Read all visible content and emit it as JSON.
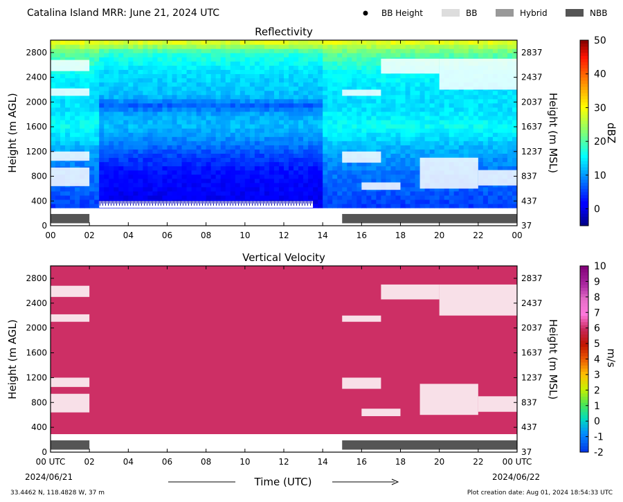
{
  "header": {
    "title": "Catalina Island MRR:  June 21, 2024 UTC",
    "legend": [
      {
        "label": "BB Height",
        "marker": "dot",
        "color": "#000000"
      },
      {
        "label": "BB",
        "marker": "swatch",
        "color": "#dddddd"
      },
      {
        "label": "Hybrid",
        "marker": "swatch",
        "color": "#999999"
      },
      {
        "label": "NBB",
        "marker": "swatch",
        "color": "#555555"
      }
    ]
  },
  "footer": {
    "location": "33.4462 N, 118.4828 W, 37 m",
    "creation": "Plot creation date: Aug 01, 2024 18:54:33 UTC",
    "xlabel": "Time (UTC)",
    "start_date": "2024/06/21",
    "end_date": "2024/06/22"
  },
  "chart_data": [
    {
      "type": "heatmap",
      "title": "Reflectivity",
      "ylabel_left": "Height (m AGL)",
      "ylabel_right": "Height (m MSL)",
      "x_ticks": [
        "00",
        "02",
        "04",
        "06",
        "08",
        "10",
        "12",
        "14",
        "16",
        "18",
        "20",
        "22",
        "00"
      ],
      "xlim": [
        0,
        24
      ],
      "ylim": [
        0,
        3000
      ],
      "y_ticks_left": [
        0,
        400,
        800,
        1200,
        1600,
        2000,
        2400,
        2800
      ],
      "y_ticks_right": [
        37,
        437,
        837,
        1237,
        1637,
        2037,
        2437,
        2837
      ],
      "colorbar": {
        "label": "dBZ",
        "min": -5,
        "max": 50,
        "ticks": [
          0,
          10,
          20,
          30,
          40,
          50
        ],
        "colormap": "jet"
      },
      "nbb_periods": [
        [
          0,
          2
        ],
        [
          15,
          24
        ]
      ],
      "color_profiles": {
        "clear_air": [
          [
            300,
            5
          ],
          [
            600,
            7
          ],
          [
            1000,
            9
          ],
          [
            1300,
            12
          ],
          [
            1600,
            16
          ],
          [
            1900,
            14
          ],
          [
            2200,
            14
          ],
          [
            2500,
            16
          ],
          [
            2800,
            21
          ],
          [
            3000,
            30
          ]
        ],
        "mid_day": [
          [
            300,
            0
          ],
          [
            500,
            1
          ],
          [
            800,
            2
          ],
          [
            1100,
            5
          ],
          [
            1300,
            8
          ],
          [
            1600,
            12
          ],
          [
            1800,
            11
          ],
          [
            1950,
            7
          ],
          [
            2100,
            12
          ],
          [
            2500,
            14
          ],
          [
            2800,
            18
          ],
          [
            3000,
            30
          ]
        ]
      },
      "mid_day_period": [
        2.5,
        14
      ],
      "gaps": [
        [
          0,
          2,
          640,
          940
        ],
        [
          0,
          2,
          1050,
          1200
        ],
        [
          0,
          2,
          2100,
          2220
        ],
        [
          0,
          2,
          2500,
          2680
        ],
        [
          15,
          17,
          1020,
          1200
        ],
        [
          15,
          17,
          2100,
          2200
        ],
        [
          17,
          20,
          2460,
          2700
        ],
        [
          16,
          18,
          580,
          700
        ],
        [
          19,
          22,
          600,
          1100
        ],
        [
          22,
          24,
          650,
          900
        ],
        [
          20,
          24,
          2200,
          2700
        ]
      ],
      "surface_texture_period": [
        2.5,
        13.5
      ]
    },
    {
      "type": "heatmap",
      "title": "Vertical Velocity",
      "ylabel_left": "Height (m AGL)",
      "ylabel_right": "Height (m MSL)",
      "x_ticks": [
        "00 UTC",
        "02",
        "04",
        "06",
        "08",
        "10",
        "12",
        "14",
        "16",
        "18",
        "20",
        "22",
        "00 UTC"
      ],
      "xlim": [
        0,
        24
      ],
      "ylim": [
        0,
        3000
      ],
      "y_ticks_left": [
        0,
        400,
        800,
        1200,
        1600,
        2000,
        2400,
        2800
      ],
      "y_ticks_right": [
        37,
        437,
        837,
        1237,
        1637,
        2037,
        2437,
        2837
      ],
      "colorbar": {
        "label": "m/s",
        "min": -2,
        "max": 10,
        "ticks": [
          -2,
          -1,
          0,
          1,
          2,
          3,
          4,
          5,
          6,
          7,
          8,
          9,
          10
        ],
        "colormap": "velocity"
      },
      "fill_value": 6,
      "fill_color": "#c01000",
      "nbb_periods": [
        [
          0,
          2
        ],
        [
          15,
          24
        ]
      ],
      "gaps": [
        [
          0,
          2,
          640,
          940
        ],
        [
          0,
          2,
          1050,
          1200
        ],
        [
          0,
          2,
          2100,
          2220
        ],
        [
          0,
          2,
          2500,
          2680
        ],
        [
          15,
          17,
          1020,
          1200
        ],
        [
          15,
          17,
          2100,
          2200
        ],
        [
          17,
          20,
          2460,
          2700
        ],
        [
          16,
          18,
          580,
          700
        ],
        [
          19,
          22,
          600,
          1100
        ],
        [
          22,
          24,
          650,
          900
        ],
        [
          20,
          24,
          2200,
          2700
        ]
      ]
    }
  ]
}
